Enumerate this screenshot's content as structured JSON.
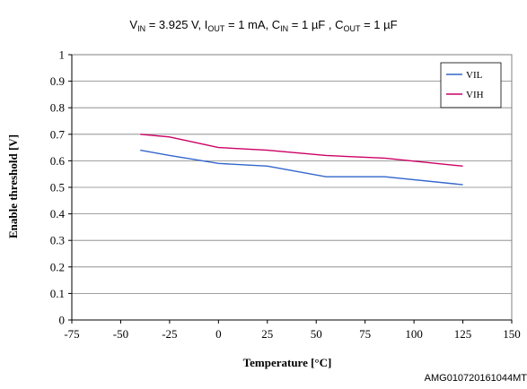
{
  "title": {
    "parts": [
      {
        "t": "V"
      },
      {
        "sub": "IN"
      },
      {
        "t": " = 3.925 V, I"
      },
      {
        "sub": "OUT"
      },
      {
        "t": " = 1 mA, C"
      },
      {
        "sub": "IN"
      },
      {
        "t": " = 1 µF , C"
      },
      {
        "sub": "OUT"
      },
      {
        "t": " = 1 µF"
      }
    ]
  },
  "figure_code": "AMG010720161044MT",
  "chart_data": {
    "type": "line",
    "xlabel": "Temperature [°C]",
    "ylabel": "Enable threshold [V]",
    "xlim": [
      -75,
      150
    ],
    "ylim": [
      0,
      1
    ],
    "xticks": [
      -75,
      -50,
      -25,
      0,
      25,
      50,
      75,
      100,
      125,
      150
    ],
    "yticks": [
      0,
      0.1,
      0.2,
      0.3,
      0.4,
      0.5,
      0.6,
      0.7,
      0.8,
      0.9,
      1
    ],
    "ytick_labels": [
      "0",
      "0.1",
      "0.2",
      "0.3",
      "0.4",
      "0.5",
      "0.6",
      "0.7",
      "0.8",
      "0.9",
      "1"
    ],
    "grid": "horizontal",
    "legend_position": "top-right",
    "series": [
      {
        "name": "VIL",
        "color": "#3366cc",
        "x": [
          -40,
          -25,
          0,
          25,
          55,
          85,
          125
        ],
        "y": [
          0.64,
          0.62,
          0.59,
          0.58,
          0.54,
          0.54,
          0.51
        ]
      },
      {
        "name": "VIH",
        "color": "#cc0066",
        "x": [
          -40,
          -25,
          0,
          25,
          55,
          85,
          125
        ],
        "y": [
          0.7,
          0.69,
          0.65,
          0.64,
          0.62,
          0.61,
          0.58
        ]
      }
    ]
  }
}
